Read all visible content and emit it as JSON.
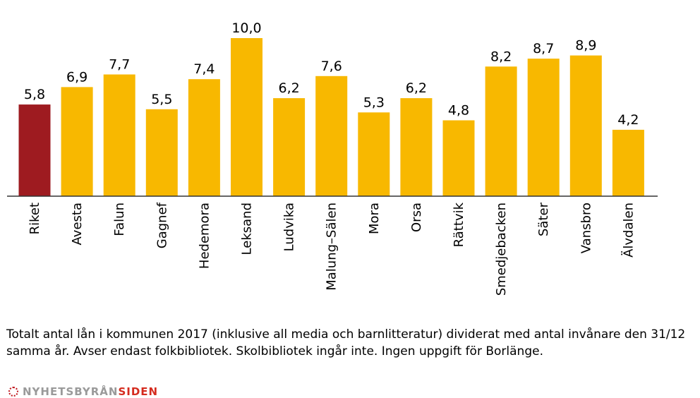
{
  "chart_data": {
    "type": "bar",
    "categories": [
      "Riket",
      "Avesta",
      "Falun",
      "Gagnef",
      "Hedemora",
      "Leksand",
      "Ludvika",
      "Malung–Sälen",
      "Mora",
      "Orsa",
      "Rättvik",
      "Smedjebacken",
      "Säter",
      "Vansbro",
      "Älvdalen"
    ],
    "values": [
      5.8,
      6.9,
      7.7,
      5.5,
      7.4,
      10.0,
      6.2,
      7.6,
      5.3,
      6.2,
      4.8,
      8.2,
      8.7,
      8.9,
      4.2
    ],
    "value_labels": [
      "5,8",
      "6,9",
      "7,7",
      "5,5",
      "7,4",
      "10,0",
      "6,2",
      "7,6",
      "5,3",
      "6,2",
      "4,8",
      "8,2",
      "8,7",
      "8,9",
      "4,2"
    ],
    "highlight_index": 0,
    "colors": {
      "bar": "#f8b800",
      "highlight": "#9e1b20",
      "axis": "#333333"
    },
    "ylim": [
      0,
      10
    ],
    "title": "",
    "xlabel": "",
    "ylabel": "",
    "grid": false
  },
  "footnote": "Totalt antal lån i kommunen 2017 (inklusive all media och barnlitteratur) dividerat med antal invånare den 31/12 samma år. Avser endast folkbibliotek. Skolbibliotek ingår inte. Ingen uppgift för Borlänge.",
  "brand": {
    "part1": "NYHETSBYRÅN",
    "part2": "SIDEN"
  }
}
